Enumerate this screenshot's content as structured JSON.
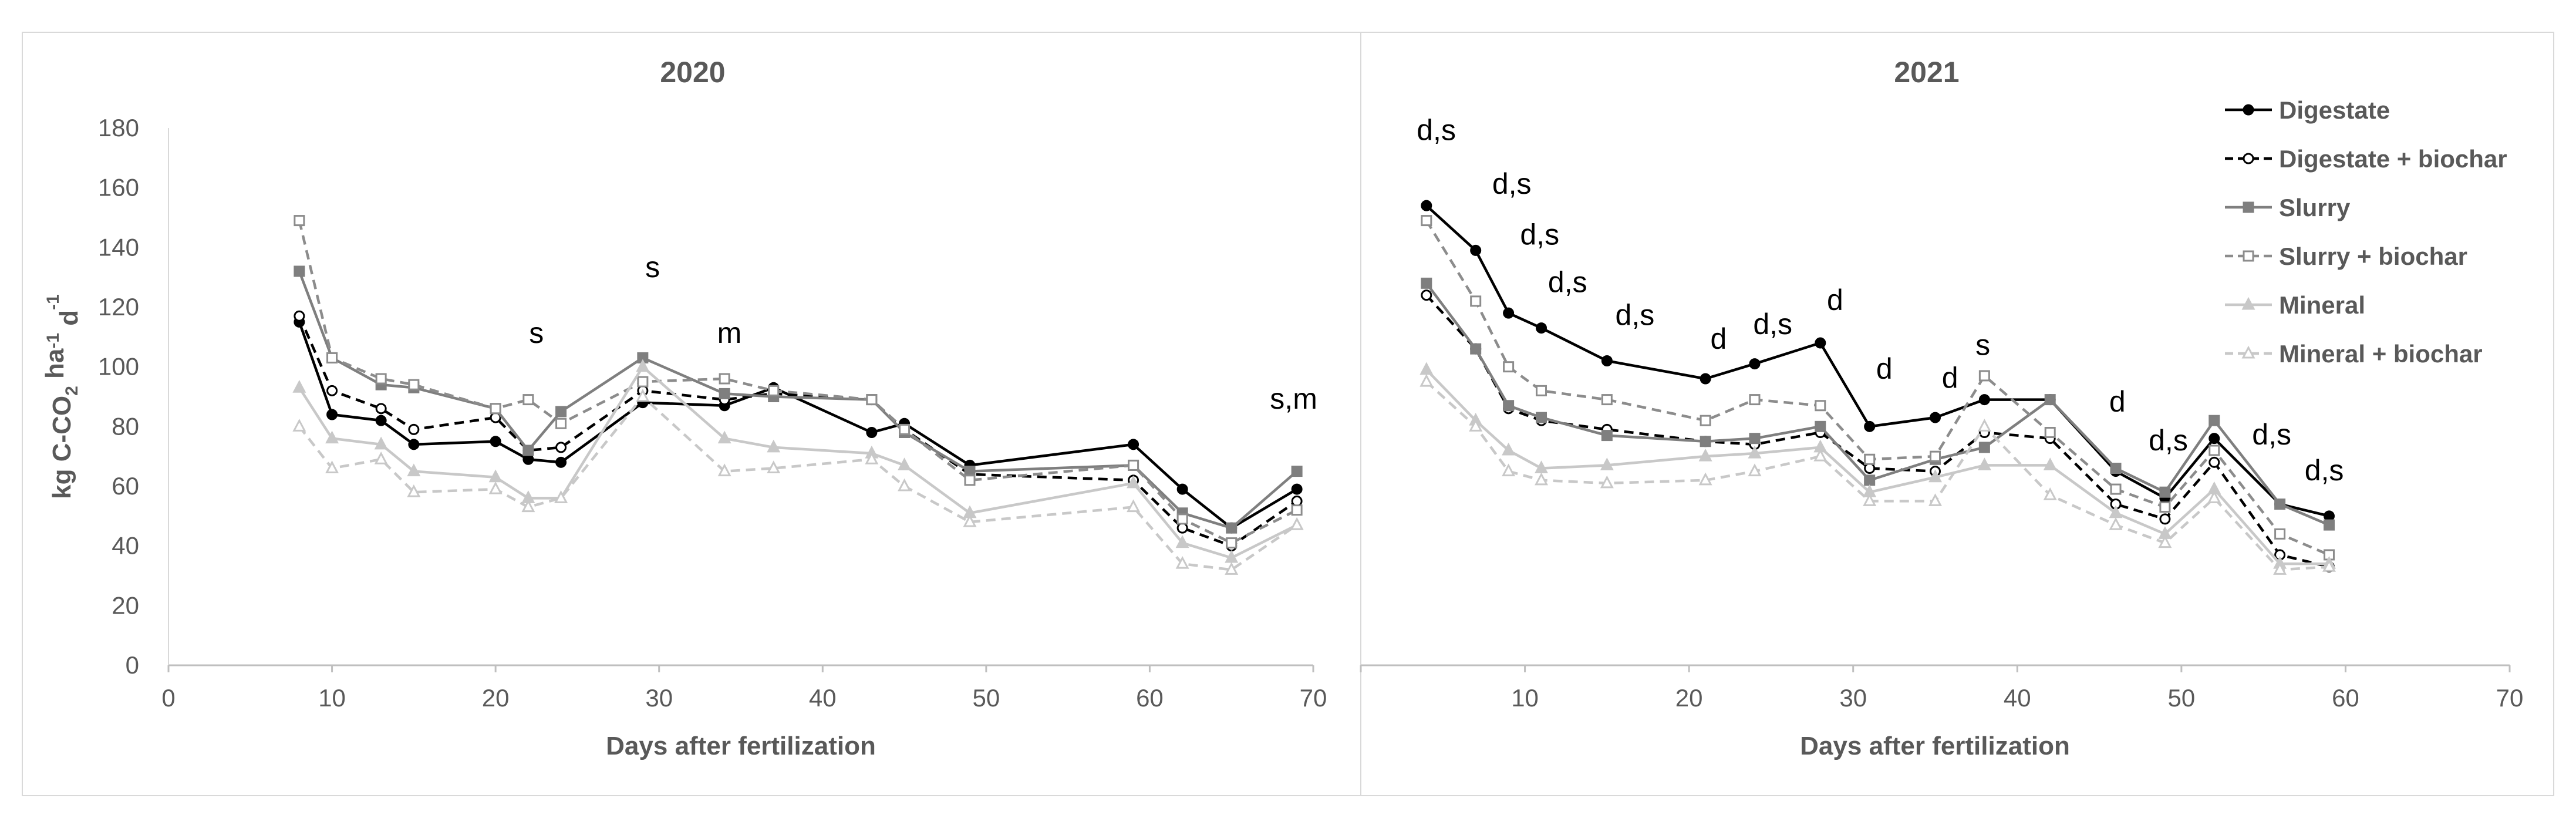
{
  "chart_data": [
    {
      "type": "line",
      "title": "2020",
      "xlabel": "Days after fertilization",
      "ylabel": "kg C-CO2 ha-1 d-1",
      "ylabel_parts": [
        "kg C-CO",
        "2",
        " ha",
        "-1",
        " d",
        "-1"
      ],
      "xlim": [
        0,
        70
      ],
      "ylim": [
        0,
        180
      ],
      "x_ticks": [
        0,
        10,
        20,
        30,
        40,
        50,
        60,
        70
      ],
      "y_ticks": [
        0,
        20,
        40,
        60,
        80,
        100,
        120,
        140,
        160,
        180
      ],
      "x_tick_labels": [
        "0",
        "10",
        "20",
        "30",
        "40",
        "50",
        "60",
        "70"
      ],
      "y_tick_labels": [
        "0",
        "20",
        "40",
        "60",
        "80",
        "100",
        "120",
        "140",
        "160",
        "180"
      ],
      "x": [
        8,
        10,
        13,
        15,
        20,
        22,
        24,
        29,
        34,
        37,
        43,
        45,
        49,
        59,
        62,
        65,
        69
      ],
      "series": [
        {
          "name": "Digestate",
          "style": "digestate",
          "values": [
            115,
            84,
            82,
            74,
            75,
            69,
            68,
            88,
            87,
            93,
            78,
            81,
            67,
            74,
            59,
            46,
            59
          ]
        },
        {
          "name": "Digestate + biochar",
          "style": "digestate_biochar",
          "values": [
            117,
            92,
            86,
            79,
            83,
            72,
            73,
            92,
            89,
            91,
            89,
            79,
            64,
            62,
            46,
            40,
            55
          ]
        },
        {
          "name": "Slurry",
          "style": "slurry",
          "values": [
            132,
            103,
            94,
            93,
            86,
            72,
            85,
            103,
            91,
            90,
            89,
            78,
            65,
            67,
            51,
            46,
            65
          ]
        },
        {
          "name": "Slurry + biochar",
          "style": "slurry_biochar",
          "values": [
            149,
            103,
            96,
            94,
            86,
            89,
            81,
            95,
            96,
            92,
            89,
            79,
            62,
            67,
            49,
            41,
            52
          ]
        },
        {
          "name": "Mineral",
          "style": "mineral",
          "values": [
            93,
            76,
            74,
            65,
            63,
            56,
            56,
            100,
            76,
            73,
            71,
            67,
            51,
            61,
            41,
            36,
            47
          ]
        },
        {
          "name": "Mineral + biochar",
          "style": "mineral_biochar",
          "values": [
            80,
            66,
            69,
            58,
            59,
            53,
            56,
            90,
            65,
            66,
            69,
            60,
            48,
            53,
            34,
            32,
            47
          ]
        }
      ],
      "annotations": [
        {
          "x": 22.5,
          "y": 108,
          "text": "s"
        },
        {
          "x": 29.6,
          "y": 130,
          "text": "s"
        },
        {
          "x": 34.3,
          "y": 108,
          "text": "m"
        },
        {
          "x": 68.8,
          "y": 86,
          "text": "s,m"
        }
      ]
    },
    {
      "type": "line",
      "title": "2021",
      "xlabel": "Days after fertilization",
      "ylabel": "",
      "xlim": [
        0,
        70
      ],
      "ylim": [
        0,
        180
      ],
      "x_ticks": [
        0,
        10,
        20,
        30,
        40,
        50,
        60,
        70
      ],
      "y_ticks": [
        0,
        20,
        40,
        60,
        80,
        100,
        120,
        140,
        160,
        180
      ],
      "x_tick_labels": [
        "",
        "10",
        "20",
        "30",
        "40",
        "50",
        "60",
        "70"
      ],
      "legend_position": "top-right",
      "x": [
        4,
        7,
        9,
        11,
        15,
        21,
        24,
        28,
        31,
        35,
        38,
        42,
        46,
        49,
        52,
        56,
        59
      ],
      "series": [
        {
          "name": "Digestate",
          "style": "digestate",
          "values": [
            154,
            139,
            118,
            113,
            102,
            96,
            101,
            108,
            80,
            83,
            89,
            89,
            65,
            56,
            76,
            54,
            50
          ]
        },
        {
          "name": "Digestate + biochar",
          "style": "digestate_biochar",
          "values": [
            124,
            106,
            86,
            82,
            79,
            75,
            74,
            78,
            66,
            65,
            78,
            76,
            54,
            49,
            68,
            37,
            33
          ]
        },
        {
          "name": "Slurry",
          "style": "slurry",
          "values": [
            128,
            106,
            87,
            83,
            77,
            75,
            76,
            80,
            62,
            69,
            73,
            89,
            66,
            58,
            82,
            54,
            47
          ]
        },
        {
          "name": "Slurry + biochar",
          "style": "slurry_biochar",
          "values": [
            149,
            122,
            100,
            92,
            89,
            82,
            89,
            87,
            69,
            70,
            97,
            78,
            59,
            53,
            72,
            44,
            37
          ]
        },
        {
          "name": "Mineral",
          "style": "mineral",
          "values": [
            99,
            82,
            72,
            66,
            67,
            70,
            71,
            73,
            58,
            63,
            67,
            67,
            51,
            44,
            59,
            34,
            34
          ]
        },
        {
          "name": "Mineral + biochar",
          "style": "mineral_biochar",
          "values": [
            95,
            80,
            65,
            62,
            61,
            62,
            65,
            70,
            55,
            55,
            80,
            57,
            47,
            41,
            56,
            32,
            33
          ]
        }
      ],
      "annotations": [
        {
          "x": 4.6,
          "y": 176,
          "text": "d,s"
        },
        {
          "x": 9.2,
          "y": 158,
          "text": "d,s"
        },
        {
          "x": 10.9,
          "y": 141,
          "text": "d,s"
        },
        {
          "x": 12.6,
          "y": 125,
          "text": "d,s"
        },
        {
          "x": 16.7,
          "y": 114,
          "text": "d,s"
        },
        {
          "x": 21.8,
          "y": 106,
          "text": "d"
        },
        {
          "x": 25.1,
          "y": 111,
          "text": "d,s"
        },
        {
          "x": 28.9,
          "y": 119,
          "text": "d"
        },
        {
          "x": 31.9,
          "y": 96,
          "text": "d"
        },
        {
          "x": 35.9,
          "y": 93,
          "text": "d"
        },
        {
          "x": 37.9,
          "y": 104,
          "text": "s"
        },
        {
          "x": 46.1,
          "y": 85,
          "text": "d"
        },
        {
          "x": 49.2,
          "y": 72,
          "text": "d,s"
        },
        {
          "x": 55.5,
          "y": 74,
          "text": "d,s"
        },
        {
          "x": 58.7,
          "y": 62,
          "text": "d,s"
        }
      ]
    }
  ]
}
